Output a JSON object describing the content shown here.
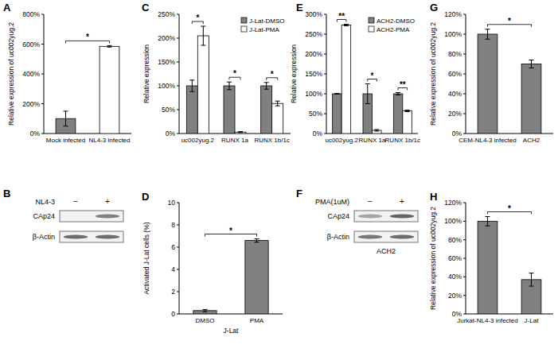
{
  "chart_data": [
    {
      "panel": "A",
      "type": "bar",
      "ylabel": "Relative expression of uc002yug.2",
      "categories": [
        "Mock infected",
        "NL4-3 infected"
      ],
      "values": [
        100,
        585
      ],
      "errors": [
        50,
        5
      ],
      "colors": [
        "#808080",
        "#ffffff"
      ],
      "ylim": [
        0,
        800
      ],
      "yticks": [
        {
          "value": 0,
          "label": "0%"
        },
        {
          "value": 200,
          "label": "200%"
        },
        {
          "value": 400,
          "label": "400%"
        },
        {
          "value": 600,
          "label": "600%"
        },
        {
          "value": 800,
          "label": "800%"
        }
      ],
      "significance": [
        "*"
      ]
    },
    {
      "panel": "B",
      "type": "blot",
      "header": "NL4-3",
      "lanes": [
        "−",
        "+"
      ],
      "rows": [
        "CAp24",
        "β-Actin"
      ],
      "bands": [
        [
          0,
          0.6
        ],
        [
          0.7,
          0.7
        ]
      ]
    },
    {
      "panel": "C",
      "type": "bar",
      "ylabel": "Relative expression",
      "categories": [
        "uc002yug.2",
        "RUNX 1a",
        "RUNX 1b/1c"
      ],
      "series": [
        {
          "name": "J-Lat-DMSO",
          "color": "#808080",
          "values": [
            100,
            100,
            100
          ],
          "errors": [
            12,
            8,
            7
          ]
        },
        {
          "name": "J-Lat-PMA",
          "color": "#ffffff",
          "values": [
            205,
            3,
            63
          ],
          "errors": [
            20,
            1,
            5
          ]
        }
      ],
      "ylim": [
        0,
        250
      ],
      "yticks": [
        {
          "value": 0,
          "label": "0%"
        },
        {
          "value": 50,
          "label": "50%"
        },
        {
          "value": 100,
          "label": "100%"
        },
        {
          "value": 150,
          "label": "150%"
        },
        {
          "value": 200,
          "label": "200%"
        },
        {
          "value": 250,
          "label": "250%"
        }
      ],
      "legend": "top-right",
      "significance": [
        "*",
        "*",
        "*"
      ]
    },
    {
      "panel": "D",
      "type": "bar",
      "ylabel": "Activated J-Lat cells (%)",
      "xlabel": "J-Lat",
      "categories": [
        "DMSO",
        "PMA"
      ],
      "values": [
        0.3,
        6.6
      ],
      "errors": [
        0.1,
        0.15
      ],
      "colors": [
        "#808080",
        "#808080"
      ],
      "ylim": [
        0,
        10
      ],
      "yticks": [
        0,
        2,
        4,
        6,
        8,
        10
      ],
      "significance": [
        "*"
      ]
    },
    {
      "panel": "E",
      "type": "bar",
      "ylabel": "Relative expression",
      "categories": [
        "uc002yug.2",
        "RUNX 1a",
        "RUNX 1b/1c"
      ],
      "series": [
        {
          "name": "ACH2-DMSO",
          "color": "#808080",
          "values": [
            100,
            100,
            100
          ],
          "errors": [
            1,
            25,
            3
          ]
        },
        {
          "name": "ACH2-PMA",
          "color": "#ffffff",
          "values": [
            273,
            8,
            57
          ],
          "errors": [
            2,
            2,
            2
          ]
        }
      ],
      "ylim": [
        0,
        300
      ],
      "yticks": [
        {
          "value": 0,
          "label": "0%"
        },
        {
          "value": 50,
          "label": "50%"
        },
        {
          "value": 100,
          "label": "100%"
        },
        {
          "value": 150,
          "label": "150%"
        },
        {
          "value": 200,
          "label": "200%"
        },
        {
          "value": 250,
          "label": "250%"
        },
        {
          "value": 300,
          "label": "300%"
        }
      ],
      "legend": "top-right",
      "significance": [
        "**",
        "*",
        "**"
      ]
    },
    {
      "panel": "F",
      "type": "blot",
      "header": "PMA(1uM)",
      "lanes": [
        "−",
        "+"
      ],
      "rows": [
        "CAp24",
        "β-Actin"
      ],
      "bands": [
        [
          0.4,
          0.75
        ],
        [
          0.65,
          0.7
        ]
      ],
      "label": "ACH2"
    },
    {
      "panel": "G",
      "type": "bar",
      "ylabel": "Relative expression of uc002yug.2",
      "categories": [
        "CEM-NL4-3 infected",
        "ACH2"
      ],
      "values": [
        100,
        70
      ],
      "errors": [
        5,
        4
      ],
      "colors": [
        "#808080",
        "#808080"
      ],
      "ylim": [
        0,
        120
      ],
      "yticks": [
        {
          "value": 0,
          "label": "0%"
        },
        {
          "value": 20,
          "label": "20%"
        },
        {
          "value": 40,
          "label": "40%"
        },
        {
          "value": 60,
          "label": "60%"
        },
        {
          "value": 80,
          "label": "80%"
        },
        {
          "value": 100,
          "label": "100%"
        },
        {
          "value": 120,
          "label": "120%"
        }
      ],
      "significance": [
        "*"
      ]
    },
    {
      "panel": "H",
      "type": "bar",
      "ylabel": "Relative expression of uc002yug.2",
      "categories": [
        "Jurkat-NL4-3 infected",
        "J-Lat"
      ],
      "values": [
        100,
        37
      ],
      "errors": [
        5,
        7
      ],
      "colors": [
        "#808080",
        "#808080"
      ],
      "ylim": [
        0,
        120
      ],
      "yticks": [
        {
          "value": 0,
          "label": "0%"
        },
        {
          "value": 20,
          "label": "20%"
        },
        {
          "value": 40,
          "label": "40%"
        },
        {
          "value": 60,
          "label": "60%"
        },
        {
          "value": 80,
          "label": "80%"
        },
        {
          "value": 100,
          "label": "100%"
        },
        {
          "value": 120,
          "label": "120%"
        }
      ],
      "significance": [
        "*"
      ]
    }
  ]
}
